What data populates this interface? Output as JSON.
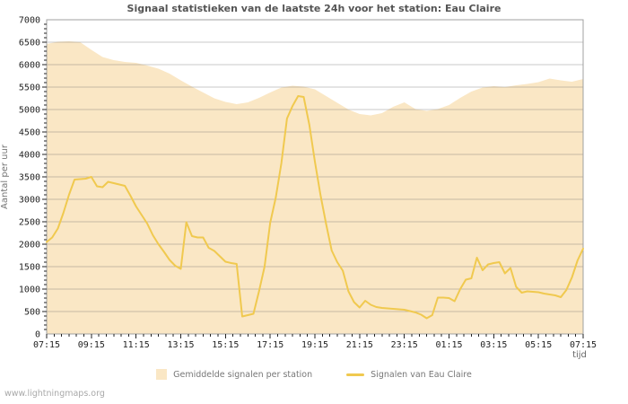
{
  "watermark": "www.lightningmaps.org",
  "style": {
    "background": "#ffffff",
    "title_color": "#545454",
    "grid_color": "rgba(102,102,102,0.35)",
    "frame_color": "#a0a0a0",
    "tick_color": "#222222",
    "tick_label_color": "#222222",
    "area_fill": "#fae7c5",
    "line_color": "#f0c94f",
    "legend_text_color": "#777777"
  },
  "chart_data": {
    "type": "area+line",
    "title": "Signaal statistieken van de laatste 24h voor het station: Eau Claire",
    "xlabel": "tijd",
    "ylabel": "Aantal per uur",
    "grid": true,
    "legend_position": "bottom-center",
    "ylim": [
      0,
      7000
    ],
    "y_tick_step": 500,
    "y_minor_tick_step": 100,
    "x_range_hours": [
      7.25,
      31.25
    ],
    "x_minor_tick_minutes": 20,
    "x_major_tick_minutes": 120,
    "y_tick_labels": [
      "0",
      "500",
      "1000",
      "1500",
      "2000",
      "2500",
      "3000",
      "3500",
      "4000",
      "4500",
      "5000",
      "5500",
      "6000",
      "6500",
      "7000"
    ],
    "x_major_labels": [
      "07:15",
      "09:15",
      "11:15",
      "13:15",
      "15:15",
      "17:15",
      "19:15",
      "21:15",
      "23:15",
      "01:15",
      "03:15",
      "05:15",
      "07:15"
    ],
    "series": [
      {
        "name": "Gemiddelde signalen per station",
        "type": "area",
        "color": "#fae7c5",
        "start": "07:15",
        "step_minutes": 30,
        "values": [
          6460,
          6510,
          6520,
          6500,
          6330,
          6170,
          6100,
          6060,
          6040,
          5980,
          5910,
          5800,
          5650,
          5510,
          5380,
          5250,
          5170,
          5120,
          5160,
          5260,
          5380,
          5490,
          5530,
          5510,
          5450,
          5300,
          5150,
          5000,
          4900,
          4870,
          4920,
          5060,
          5160,
          5010,
          4970,
          5010,
          5100,
          5260,
          5400,
          5490,
          5520,
          5500,
          5540,
          5570,
          5610,
          5690,
          5650,
          5620,
          5680
        ]
      },
      {
        "name": "Signalen van Eau Claire",
        "type": "line",
        "color": "#f0c94f",
        "start": "07:15",
        "step_minutes": 15,
        "values": [
          2050,
          2150,
          2350,
          2700,
          3100,
          3440,
          3450,
          3460,
          3500,
          3290,
          3270,
          3390,
          3360,
          3330,
          3300,
          3080,
          2840,
          2650,
          2460,
          2200,
          2000,
          1830,
          1650,
          1520,
          1450,
          2490,
          2180,
          2150,
          2150,
          1920,
          1850,
          1730,
          1610,
          1580,
          1560,
          390,
          420,
          450,
          950,
          1500,
          2480,
          3040,
          3800,
          4800,
          5080,
          5300,
          5280,
          4660,
          3840,
          3100,
          2450,
          1860,
          1600,
          1410,
          950,
          710,
          590,
          740,
          650,
          600,
          580,
          570,
          560,
          550,
          540,
          510,
          480,
          430,
          350,
          420,
          810,
          810,
          800,
          730,
          1000,
          1210,
          1240,
          1700,
          1420,
          1550,
          1580,
          1600,
          1350,
          1470,
          1050,
          920,
          950,
          940,
          930,
          900,
          880,
          860,
          820,
          980,
          1260,
          1640,
          1900
        ]
      }
    ]
  }
}
